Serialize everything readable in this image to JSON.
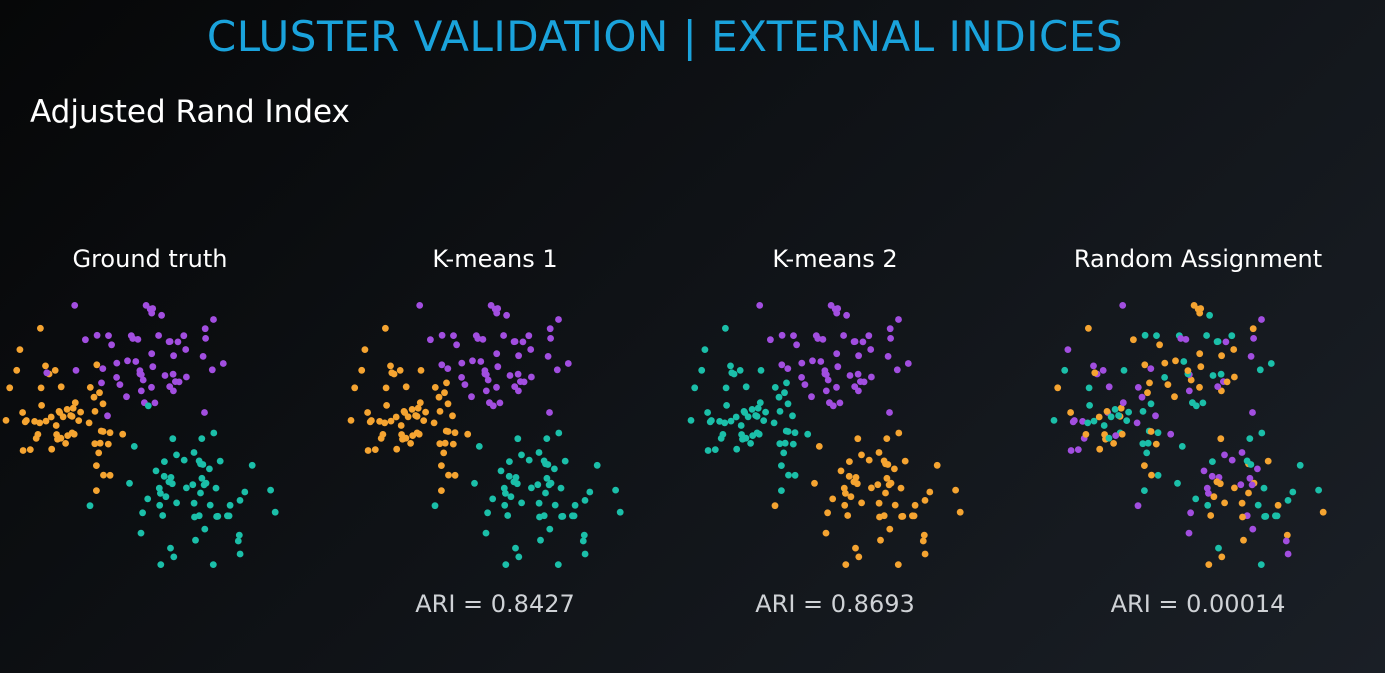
{
  "header": {
    "title": "CLUSTER VALIDATION | EXTERNAL INDICES",
    "subtitle": "Adjusted Rand Index"
  },
  "colors": {
    "orange": "#f5a431",
    "purple": "#a24ee0",
    "teal": "#1bbfa9",
    "title_blue": "#1aa3dc"
  },
  "chart_data": [
    {
      "type": "scatter",
      "title": "Ground truth",
      "score": "",
      "xlim": [
        0,
        10
      ],
      "ylim": [
        0,
        10
      ],
      "clusters": [
        {
          "name": "orange",
          "center": [
            2.2,
            5.8
          ],
          "spread": 1.15,
          "n": 60
        },
        {
          "name": "purple",
          "center": [
            5.2,
            7.4
          ],
          "spread": 1.05,
          "n": 55
        },
        {
          "name": "teal",
          "center": [
            6.4,
            2.9
          ],
          "spread": 1.15,
          "n": 60
        }
      ],
      "assignment": "ground_truth"
    },
    {
      "type": "scatter",
      "title": "K-means 1",
      "score": "ARI = 0.8427",
      "xlim": [
        0,
        10
      ],
      "ylim": [
        0,
        10
      ],
      "assignment": "kmeans_1",
      "ari": 0.8427
    },
    {
      "type": "scatter",
      "title": "K-means 2",
      "score": "ARI = 0.8693",
      "xlim": [
        0,
        10
      ],
      "ylim": [
        0,
        10
      ],
      "assignment": "kmeans_2",
      "ari": 0.8693
    },
    {
      "type": "scatter",
      "title": "Random Assignment",
      "score": "ARI = 0.00014",
      "xlim": [
        0,
        10
      ],
      "ylim": [
        0,
        10
      ],
      "assignment": "random",
      "ari": 0.00014
    }
  ]
}
